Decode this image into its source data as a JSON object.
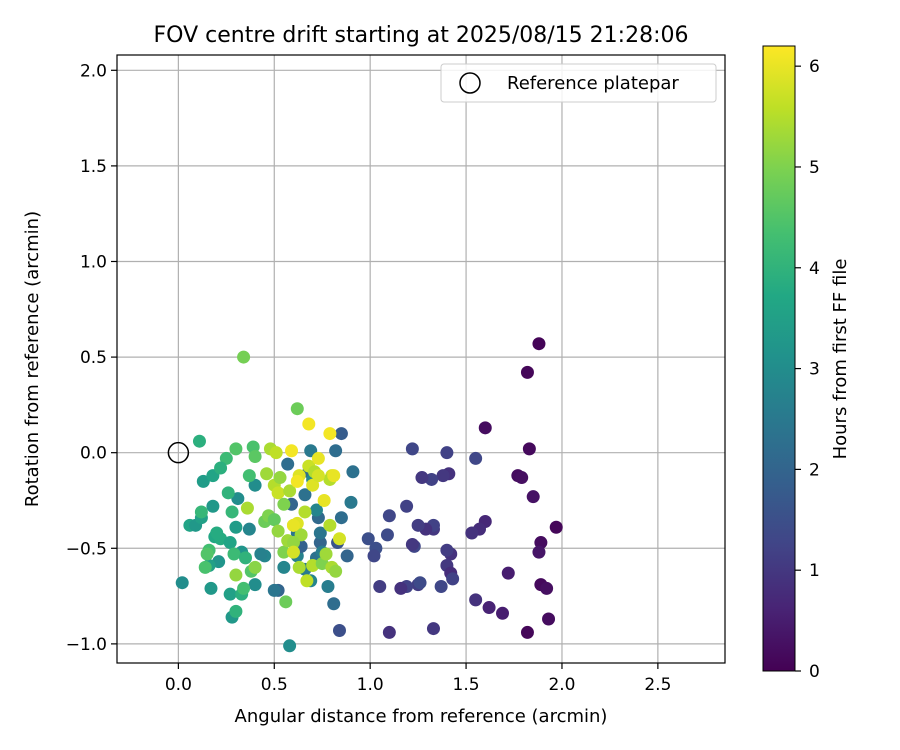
{
  "chart_data": {
    "type": "scatter",
    "title": "FOV centre drift starting at 2025/08/15 21:28:06",
    "xlabel": "Angular distance from reference (arcmin)",
    "ylabel": "Rotation from reference (arcmin)",
    "xlim": [
      -0.32,
      2.85
    ],
    "ylim": [
      -1.1,
      2.08
    ],
    "xticks": [
      0.0,
      0.5,
      1.0,
      1.5,
      2.0,
      2.5
    ],
    "xtick_labels": [
      "0.0",
      "0.5",
      "1.0",
      "1.5",
      "2.0",
      "2.5"
    ],
    "yticks": [
      -1.0,
      -0.5,
      0.0,
      0.5,
      1.0,
      1.5,
      2.0
    ],
    "ytick_labels": [
      "−1.0",
      "−0.5",
      "0.0",
      "0.5",
      "1.0",
      "1.5",
      "2.0"
    ],
    "grid": true,
    "legend": {
      "position": "top-right",
      "label": "Reference platepar"
    },
    "reference_point": {
      "x": 0.0,
      "y": 0.0
    },
    "colorbar": {
      "label": "Hours from first FF file",
      "colormap": "viridis",
      "range": [
        0,
        6.2
      ],
      "ticks": [
        0,
        1,
        2,
        3,
        4,
        5,
        6
      ],
      "tick_labels": [
        "0",
        "1",
        "2",
        "3",
        "4",
        "5",
        "6"
      ]
    },
    "points": [
      {
        "x": 1.88,
        "y": 0.57,
        "h": 0.05
      },
      {
        "x": 1.82,
        "y": 0.42,
        "h": 0.1
      },
      {
        "x": 1.6,
        "y": 0.13,
        "h": 0.2
      },
      {
        "x": 1.83,
        "y": 0.02,
        "h": 0.15
      },
      {
        "x": 1.77,
        "y": -0.12,
        "h": 0.2
      },
      {
        "x": 1.79,
        "y": -0.13,
        "h": 0.25
      },
      {
        "x": 1.85,
        "y": -0.23,
        "h": 0.3
      },
      {
        "x": 1.97,
        "y": -0.39,
        "h": 0.1
      },
      {
        "x": 1.89,
        "y": -0.47,
        "h": 0.2
      },
      {
        "x": 1.88,
        "y": -0.52,
        "h": 0.35
      },
      {
        "x": 1.89,
        "y": -0.69,
        "h": 0.15
      },
      {
        "x": 1.92,
        "y": -0.71,
        "h": 0.25
      },
      {
        "x": 1.93,
        "y": -0.87,
        "h": 0.2
      },
      {
        "x": 1.82,
        "y": -0.94,
        "h": 0.1
      },
      {
        "x": 1.72,
        "y": -0.63,
        "h": 0.5
      },
      {
        "x": 1.69,
        "y": -0.84,
        "h": 0.5
      },
      {
        "x": 1.62,
        "y": -0.81,
        "h": 0.6
      },
      {
        "x": 1.55,
        "y": -0.77,
        "h": 0.9
      },
      {
        "x": 1.6,
        "y": -0.36,
        "h": 0.7
      },
      {
        "x": 1.57,
        "y": -0.4,
        "h": 0.8
      },
      {
        "x": 1.53,
        "y": -0.42,
        "h": 0.9
      },
      {
        "x": 1.55,
        "y": -0.03,
        "h": 1.3
      },
      {
        "x": 1.42,
        "y": -0.53,
        "h": 0.9
      },
      {
        "x": 1.4,
        "y": -0.51,
        "h": 1.1
      },
      {
        "x": 1.4,
        "y": -0.59,
        "h": 1.0
      },
      {
        "x": 1.42,
        "y": -0.63,
        "h": 0.8
      },
      {
        "x": 1.43,
        "y": -0.66,
        "h": 1.2
      },
      {
        "x": 1.41,
        "y": -0.11,
        "h": 0.9
      },
      {
        "x": 1.4,
        "y": 0.0,
        "h": 1.2
      },
      {
        "x": 1.38,
        "y": -0.12,
        "h": 1.0
      },
      {
        "x": 1.32,
        "y": -0.14,
        "h": 1.2
      },
      {
        "x": 1.27,
        "y": -0.13,
        "h": 1.0
      },
      {
        "x": 1.22,
        "y": 0.02,
        "h": 1.3
      },
      {
        "x": 1.33,
        "y": -0.4,
        "h": 1.0
      },
      {
        "x": 1.33,
        "y": -0.38,
        "h": 1.2
      },
      {
        "x": 1.29,
        "y": -0.4,
        "h": 0.9
      },
      {
        "x": 1.25,
        "y": -0.38,
        "h": 1.1
      },
      {
        "x": 1.23,
        "y": -0.49,
        "h": 1.3
      },
      {
        "x": 1.22,
        "y": -0.48,
        "h": 1.0
      },
      {
        "x": 1.19,
        "y": -0.28,
        "h": 1.2
      },
      {
        "x": 1.37,
        "y": -0.7,
        "h": 1.3
      },
      {
        "x": 1.25,
        "y": -0.69,
        "h": 1.1
      },
      {
        "x": 1.26,
        "y": -0.68,
        "h": 1.4
      },
      {
        "x": 1.19,
        "y": -0.7,
        "h": 1.2
      },
      {
        "x": 1.16,
        "y": -0.71,
        "h": 0.9
      },
      {
        "x": 1.05,
        "y": -0.7,
        "h": 1.1
      },
      {
        "x": 1.33,
        "y": -0.92,
        "h": 1.0
      },
      {
        "x": 1.1,
        "y": -0.94,
        "h": 0.9
      },
      {
        "x": 1.1,
        "y": -0.33,
        "h": 1.3
      },
      {
        "x": 1.09,
        "y": -0.43,
        "h": 1.4
      },
      {
        "x": 1.03,
        "y": -0.5,
        "h": 1.5
      },
      {
        "x": 1.02,
        "y": -0.54,
        "h": 1.3
      },
      {
        "x": 0.99,
        "y": -0.45,
        "h": 1.5
      },
      {
        "x": 0.88,
        "y": -0.54,
        "h": 2.0
      },
      {
        "x": 0.83,
        "y": -0.47,
        "h": 1.6
      },
      {
        "x": 0.84,
        "y": -0.93,
        "h": 1.5
      },
      {
        "x": 0.81,
        "y": -0.79,
        "h": 2.2
      },
      {
        "x": 0.78,
        "y": -0.7,
        "h": 2.6
      },
      {
        "x": 0.85,
        "y": -0.34,
        "h": 2.2
      },
      {
        "x": 0.9,
        "y": -0.26,
        "h": 2.5
      },
      {
        "x": 0.91,
        "y": -0.1,
        "h": 2.3
      },
      {
        "x": 0.85,
        "y": 0.1,
        "h": 1.8
      },
      {
        "x": 0.82,
        "y": 0.01,
        "h": 2.2
      },
      {
        "x": 0.58,
        "y": -1.01,
        "h": 3.0
      },
      {
        "x": 0.52,
        "y": -0.72,
        "h": 2.0
      },
      {
        "x": 0.5,
        "y": -0.72,
        "h": 2.4
      },
      {
        "x": 0.55,
        "y": -0.6,
        "h": 2.8
      },
      {
        "x": 0.57,
        "y": -0.06,
        "h": 2.2
      },
      {
        "x": 0.59,
        "y": -0.27,
        "h": 2.0
      },
      {
        "x": 0.62,
        "y": -0.42,
        "h": 2.4
      },
      {
        "x": 0.62,
        "y": -0.54,
        "h": 2.7
      },
      {
        "x": 0.64,
        "y": -0.49,
        "h": 1.9
      },
      {
        "x": 0.66,
        "y": -0.61,
        "h": 2.5
      },
      {
        "x": 0.69,
        "y": -0.67,
        "h": 2.8
      },
      {
        "x": 0.72,
        "y": -0.55,
        "h": 2.3
      },
      {
        "x": 0.74,
        "y": -0.47,
        "h": 2.0
      },
      {
        "x": 0.75,
        "y": -0.52,
        "h": 2.6
      },
      {
        "x": 0.73,
        "y": -0.34,
        "h": 2.1
      },
      {
        "x": 0.72,
        "y": -0.3,
        "h": 2.8
      },
      {
        "x": 0.74,
        "y": -0.42,
        "h": 2.4
      },
      {
        "x": 0.69,
        "y": 0.01,
        "h": 2.5
      },
      {
        "x": 0.68,
        "y": -0.1,
        "h": 2.2
      },
      {
        "x": 0.7,
        "y": -0.14,
        "h": 2.9
      },
      {
        "x": 0.66,
        "y": -0.22,
        "h": 2.3
      },
      {
        "x": 0.45,
        "y": -0.54,
        "h": 2.8
      },
      {
        "x": 0.4,
        "y": -0.69,
        "h": 3.0
      },
      {
        "x": 0.43,
        "y": -0.53,
        "h": 2.7
      },
      {
        "x": 0.4,
        "y": -0.17,
        "h": 3.0
      },
      {
        "x": 0.37,
        "y": -0.4,
        "h": 2.8
      },
      {
        "x": 0.33,
        "y": -0.52,
        "h": 3.2
      },
      {
        "x": 0.3,
        "y": -0.39,
        "h": 3.4
      },
      {
        "x": 0.31,
        "y": -0.24,
        "h": 3.0
      },
      {
        "x": 0.28,
        "y": -0.86,
        "h": 3.3
      },
      {
        "x": 0.27,
        "y": -0.74,
        "h": 3.5
      },
      {
        "x": 0.21,
        "y": -0.57,
        "h": 3.2
      },
      {
        "x": 0.19,
        "y": -0.44,
        "h": 3.7
      },
      {
        "x": 0.16,
        "y": -0.59,
        "h": 3.5
      },
      {
        "x": 0.17,
        "y": -0.71,
        "h": 3.3
      },
      {
        "x": 0.02,
        "y": -0.68,
        "h": 3.0
      },
      {
        "x": 0.06,
        "y": -0.38,
        "h": 3.6
      },
      {
        "x": 0.09,
        "y": -0.38,
        "h": 3.3
      },
      {
        "x": 0.12,
        "y": -0.34,
        "h": 3.5
      },
      {
        "x": 0.13,
        "y": -0.15,
        "h": 3.4
      },
      {
        "x": 0.18,
        "y": -0.28,
        "h": 3.3
      },
      {
        "x": 0.18,
        "y": -0.12,
        "h": 3.6
      },
      {
        "x": 0.22,
        "y": -0.45,
        "h": 3.8
      },
      {
        "x": 0.27,
        "y": -0.47,
        "h": 3.6
      },
      {
        "x": 0.3,
        "y": -0.83,
        "h": 4.0
      },
      {
        "x": 0.33,
        "y": -0.74,
        "h": 3.9
      },
      {
        "x": 0.29,
        "y": -0.53,
        "h": 4.2
      },
      {
        "x": 0.35,
        "y": -0.55,
        "h": 4.0
      },
      {
        "x": 0.34,
        "y": -0.71,
        "h": 4.3
      },
      {
        "x": 0.38,
        "y": -0.62,
        "h": 4.5
      },
      {
        "x": 0.28,
        "y": -0.31,
        "h": 4.1
      },
      {
        "x": 0.25,
        "y": -0.03,
        "h": 4.2
      },
      {
        "x": 0.26,
        "y": -0.21,
        "h": 4.0
      },
      {
        "x": 0.22,
        "y": -0.08,
        "h": 3.9
      },
      {
        "x": 0.11,
        "y": 0.06,
        "h": 3.9
      },
      {
        "x": 0.12,
        "y": -0.31,
        "h": 4.1
      },
      {
        "x": 0.16,
        "y": -0.51,
        "h": 4.3
      },
      {
        "x": 0.15,
        "y": -0.53,
        "h": 4.5
      },
      {
        "x": 0.14,
        "y": -0.6,
        "h": 4.4
      },
      {
        "x": 0.2,
        "y": -0.42,
        "h": 3.8
      },
      {
        "x": 0.3,
        "y": 0.02,
        "h": 4.5
      },
      {
        "x": 0.39,
        "y": 0.03,
        "h": 4.4
      },
      {
        "x": 0.4,
        "y": -0.02,
        "h": 4.6
      },
      {
        "x": 0.37,
        "y": -0.12,
        "h": 4.3
      },
      {
        "x": 0.45,
        "y": -0.36,
        "h": 4.8
      },
      {
        "x": 0.47,
        "y": -0.33,
        "h": 5.0
      },
      {
        "x": 0.5,
        "y": -0.35,
        "h": 4.7
      },
      {
        "x": 0.52,
        "y": -0.41,
        "h": 5.2
      },
      {
        "x": 0.56,
        "y": -0.78,
        "h": 4.8
      },
      {
        "x": 0.55,
        "y": -0.52,
        "h": 5.0
      },
      {
        "x": 0.57,
        "y": -0.46,
        "h": 5.3
      },
      {
        "x": 0.3,
        "y": -0.64,
        "h": 5.2
      },
      {
        "x": 0.4,
        "y": -0.6,
        "h": 5.1
      },
      {
        "x": 0.36,
        "y": -0.29,
        "h": 5.4
      },
      {
        "x": 0.34,
        "y": 0.5,
        "h": 4.9
      },
      {
        "x": 0.62,
        "y": 0.23,
        "h": 4.8
      },
      {
        "x": 0.48,
        "y": 0.02,
        "h": 5.4
      },
      {
        "x": 0.51,
        "y": 0.0,
        "h": 5.6
      },
      {
        "x": 0.46,
        "y": -0.11,
        "h": 5.3
      },
      {
        "x": 0.5,
        "y": -0.17,
        "h": 5.5
      },
      {
        "x": 0.52,
        "y": -0.21,
        "h": 5.7
      },
      {
        "x": 0.53,
        "y": -0.13,
        "h": 5.2
      },
      {
        "x": 0.55,
        "y": -0.27,
        "h": 5.0
      },
      {
        "x": 0.58,
        "y": -0.2,
        "h": 5.4
      },
      {
        "x": 0.6,
        "y": -0.38,
        "h": 5.6
      },
      {
        "x": 0.62,
        "y": -0.37,
        "h": 5.9
      },
      {
        "x": 0.64,
        "y": -0.43,
        "h": 5.3
      },
      {
        "x": 0.66,
        "y": -0.31,
        "h": 5.5
      },
      {
        "x": 0.6,
        "y": -0.47,
        "h": 5.2
      },
      {
        "x": 0.6,
        "y": -0.52,
        "h": 5.8
      },
      {
        "x": 0.63,
        "y": -0.6,
        "h": 5.4
      },
      {
        "x": 0.67,
        "y": -0.67,
        "h": 5.6
      },
      {
        "x": 0.7,
        "y": -0.59,
        "h": 5.5
      },
      {
        "x": 0.75,
        "y": -0.58,
        "h": 5.0
      },
      {
        "x": 0.77,
        "y": -0.53,
        "h": 5.3
      },
      {
        "x": 0.79,
        "y": -0.38,
        "h": 5.5
      },
      {
        "x": 0.8,
        "y": -0.6,
        "h": 5.4
      },
      {
        "x": 0.82,
        "y": -0.62,
        "h": 5.2
      },
      {
        "x": 0.8,
        "y": -0.12,
        "h": 5.8
      },
      {
        "x": 0.79,
        "y": -0.14,
        "h": 5.5
      },
      {
        "x": 0.76,
        "y": -0.25,
        "h": 6.0
      },
      {
        "x": 0.7,
        "y": -0.17,
        "h": 5.9
      },
      {
        "x": 0.68,
        "y": -0.07,
        "h": 5.7
      },
      {
        "x": 0.71,
        "y": -0.1,
        "h": 5.5
      },
      {
        "x": 0.73,
        "y": -0.03,
        "h": 6.0
      },
      {
        "x": 0.73,
        "y": -0.12,
        "h": 5.8
      },
      {
        "x": 0.63,
        "y": -0.12,
        "h": 5.9
      },
      {
        "x": 0.62,
        "y": -0.15,
        "h": 6.1
      },
      {
        "x": 0.59,
        "y": 0.01,
        "h": 6.1
      },
      {
        "x": 0.6,
        "y": -0.38,
        "h": 6.0
      },
      {
        "x": 0.68,
        "y": 0.15,
        "h": 6.1
      },
      {
        "x": 0.79,
        "y": 0.1,
        "h": 6.1
      },
      {
        "x": 0.81,
        "y": -0.12,
        "h": 6.0
      },
      {
        "x": 0.84,
        "y": -0.45,
        "h": 5.8
      }
    ]
  }
}
